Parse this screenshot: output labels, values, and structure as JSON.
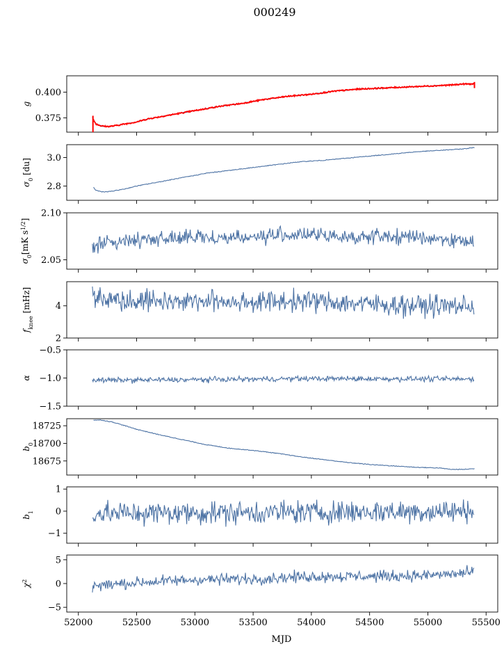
{
  "figure": {
    "title": "000249",
    "xlabel": "MJD"
  },
  "colors": {
    "series": "#4c72a4",
    "highlight": "#ff0000",
    "axes": "#000000"
  },
  "chart_data": [
    {
      "type": "line",
      "ylabel": "g",
      "xlim": [
        51900,
        55600
      ],
      "ylim": [
        0.361,
        0.416
      ],
      "yticks": [
        0.375,
        0.4
      ],
      "ytick_labels": [
        "0.375",
        "0.400"
      ],
      "xtick_labels_shown": false,
      "overlay": {
        "color": "red",
        "note": "red trace overlaid on series"
      },
      "series": [
        {
          "x": [
            52120,
            52135,
            52150,
            52200,
            52250,
            52300,
            52400,
            52500,
            52600,
            52800,
            53000,
            53200,
            53400,
            53600,
            53800,
            54000,
            54200,
            54400,
            54600,
            54800,
            55000,
            55200,
            55300,
            55350,
            55400
          ],
          "values": [
            0.376,
            0.372,
            0.369,
            0.367,
            0.3665,
            0.367,
            0.369,
            0.371,
            0.374,
            0.378,
            0.382,
            0.386,
            0.389,
            0.393,
            0.396,
            0.398,
            0.401,
            0.403,
            0.404,
            0.405,
            0.406,
            0.407,
            0.408,
            0.408,
            0.408
          ]
        }
      ]
    },
    {
      "type": "line",
      "ylabel": "σ0 [du]",
      "xlim": [
        51900,
        55600
      ],
      "ylim": [
        2.7,
        3.09
      ],
      "yticks": [
        2.8,
        3.0
      ],
      "ytick_labels": [
        "2.8",
        "3.0"
      ],
      "xtick_labels_shown": false,
      "series": [
        {
          "x": [
            52130,
            52150,
            52200,
            52250,
            52300,
            52400,
            52500,
            52700,
            52900,
            53100,
            53300,
            53500,
            53700,
            53900,
            54100,
            54300,
            54500,
            54700,
            54900,
            55100,
            55300,
            55400
          ],
          "values": [
            2.79,
            2.77,
            2.76,
            2.76,
            2.765,
            2.78,
            2.8,
            2.83,
            2.86,
            2.89,
            2.91,
            2.93,
            2.95,
            2.97,
            2.98,
            2.995,
            3.01,
            3.025,
            3.04,
            3.05,
            3.06,
            3.07
          ]
        }
      ]
    },
    {
      "type": "line",
      "ylabel": "σ0[mK s1/2]",
      "xlim": [
        51900,
        55600
      ],
      "ylim": [
        2.04,
        2.1
      ],
      "yticks": [
        2.05,
        2.1
      ],
      "ytick_labels": [
        "2.05",
        "2.10"
      ],
      "xtick_labels_shown": false,
      "noise": {
        "base": 2.072,
        "amp": 0.006,
        "trend": [
          [
            52120,
            2.066
          ],
          [
            52300,
            2.068
          ],
          [
            52600,
            2.073
          ],
          [
            53500,
            2.074
          ],
          [
            53800,
            2.077
          ],
          [
            54200,
            2.075
          ],
          [
            55000,
            2.074
          ],
          [
            55400,
            2.068
          ]
        ]
      }
    },
    {
      "type": "line",
      "ylabel": "fknee [mHz]",
      "xlim": [
        51900,
        55600
      ],
      "ylim": [
        2,
        5.5
      ],
      "yticks": [
        2,
        4
      ],
      "ytick_labels": [
        "2",
        "4"
      ],
      "xtick_labels_shown": false,
      "noise": {
        "base": 4.2,
        "amp": 0.5,
        "trend": [
          [
            52120,
            4.7
          ],
          [
            52300,
            4.4
          ],
          [
            52800,
            4.3
          ],
          [
            53500,
            4.25
          ],
          [
            54000,
            4.3
          ],
          [
            54500,
            4.1
          ],
          [
            55000,
            4.0
          ],
          [
            55400,
            4.0
          ]
        ]
      }
    },
    {
      "type": "line",
      "ylabel": "α",
      "xlim": [
        51900,
        55600
      ],
      "ylim": [
        -1.5,
        -0.5
      ],
      "yticks": [
        -1.5,
        -1.0,
        -0.5
      ],
      "ytick_labels": [
        "−1.5",
        "−1.0",
        "−0.5"
      ],
      "xtick_labels_shown": false,
      "noise": {
        "base": -1.02,
        "amp": 0.035,
        "trend": [
          [
            52120,
            -1.04
          ],
          [
            53000,
            -1.03
          ],
          [
            54000,
            -1.01
          ],
          [
            55400,
            -1.02
          ]
        ]
      }
    },
    {
      "type": "line",
      "ylabel": "b0",
      "xlim": [
        51900,
        55600
      ],
      "ylim": [
        18655,
        18735
      ],
      "yticks": [
        18675,
        18700,
        18725
      ],
      "ytick_labels": [
        "18675",
        "18700",
        "18725"
      ],
      "xtick_labels_shown": false,
      "series": [
        {
          "x": [
            52130,
            52200,
            52300,
            52500,
            52700,
            52900,
            53100,
            53300,
            53500,
            53700,
            53900,
            54100,
            54300,
            54500,
            54700,
            54900,
            55100,
            55200,
            55300,
            55400
          ],
          "values": [
            18733,
            18733,
            18730,
            18720,
            18712,
            18705,
            18698,
            18693,
            18690,
            18686,
            18681,
            18677,
            18673,
            18670,
            18668,
            18666,
            18665,
            18663,
            18663,
            18664
          ]
        }
      ]
    },
    {
      "type": "line",
      "ylabel": "b1",
      "xlim": [
        51900,
        55600
      ],
      "ylim": [
        -1.45,
        1.1
      ],
      "yticks": [
        -1,
        0,
        1
      ],
      "ytick_labels": [
        "−1",
        "0",
        "1"
      ],
      "xtick_labels_shown": false,
      "noise": {
        "base": -0.1,
        "amp": 0.4,
        "trend": [
          [
            52120,
            -0.1
          ],
          [
            55400,
            0.0
          ]
        ]
      }
    },
    {
      "type": "line",
      "ylabel": "χ2",
      "xlim": [
        51900,
        55600
      ],
      "ylim": [
        -6,
        6
      ],
      "yticks": [
        -5,
        0,
        5
      ],
      "ytick_labels": [
        "−5",
        "0",
        "5"
      ],
      "xtick_labels_shown": true,
      "xticks": [
        52000,
        52500,
        53000,
        53500,
        54000,
        54500,
        55000,
        55500
      ],
      "xtick_labels": [
        "52000",
        "52500",
        "53000",
        "53500",
        "54000",
        "54500",
        "55000",
        "55500"
      ],
      "noise": {
        "base": 0.8,
        "amp": 0.9,
        "trend": [
          [
            52120,
            -0.5
          ],
          [
            52500,
            0.2
          ],
          [
            53000,
            0.8
          ],
          [
            53500,
            1.0
          ],
          [
            54000,
            1.5
          ],
          [
            54500,
            1.5
          ],
          [
            55000,
            1.7
          ],
          [
            55400,
            2.3
          ]
        ]
      }
    }
  ]
}
